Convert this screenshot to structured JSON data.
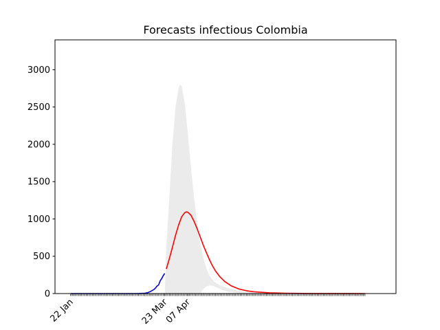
{
  "chart_data": {
    "type": "line",
    "title": "Forecasts infectious Colombia",
    "xlabel": "",
    "ylabel": "",
    "x_axis": {
      "unit": "days",
      "start_date": "2020-01-22",
      "end_date": "2020-07-31",
      "tick_labels": [
        {
          "date": "2020-01-22",
          "label": "22 Jan"
        },
        {
          "date": "2020-03-23",
          "label": "23 Mar"
        },
        {
          "date": "2020-04-07",
          "label": "07 Apr"
        }
      ]
    },
    "ylim": [
      0,
      3400
    ],
    "y_ticks": [
      0,
      500,
      1000,
      1500,
      2000,
      2500,
      3000
    ],
    "grid": false,
    "series": [
      {
        "color": "#0000cc",
        "points": [
          [
            "2020-01-22",
            0
          ],
          [
            "2020-02-15",
            0
          ],
          [
            "2020-03-01",
            0
          ],
          [
            "2020-03-06",
            1
          ],
          [
            "2020-03-10",
            5
          ],
          [
            "2020-03-12",
            12
          ],
          [
            "2020-03-14",
            30
          ],
          [
            "2020-03-16",
            55
          ],
          [
            "2020-03-17",
            75
          ],
          [
            "2020-03-18",
            100
          ],
          [
            "2020-03-19",
            115
          ],
          [
            "2020-03-20",
            170
          ],
          [
            "2020-03-21",
            200
          ],
          [
            "2020-03-22",
            240
          ],
          [
            "2020-03-23",
            270
          ]
        ]
      },
      {
        "color": "#ff0000",
        "points": [
          [
            "2020-03-24",
            330
          ],
          [
            "2020-03-26",
            470
          ],
          [
            "2020-03-28",
            620
          ],
          [
            "2020-03-30",
            780
          ],
          [
            "2020-04-01",
            920
          ],
          [
            "2020-04-03",
            1030
          ],
          [
            "2020-04-05",
            1085
          ],
          [
            "2020-04-06",
            1095
          ],
          [
            "2020-04-07",
            1090
          ],
          [
            "2020-04-09",
            1050
          ],
          [
            "2020-04-11",
            970
          ],
          [
            "2020-04-13",
            870
          ],
          [
            "2020-04-15",
            760
          ],
          [
            "2020-04-17",
            650
          ],
          [
            "2020-04-19",
            550
          ],
          [
            "2020-04-21",
            455
          ],
          [
            "2020-04-23",
            370
          ],
          [
            "2020-04-25",
            300
          ],
          [
            "2020-04-28",
            220
          ],
          [
            "2020-05-01",
            160
          ],
          [
            "2020-05-05",
            105
          ],
          [
            "2020-05-10",
            62
          ],
          [
            "2020-05-15",
            38
          ],
          [
            "2020-05-20",
            24
          ],
          [
            "2020-05-30",
            10
          ],
          [
            "2020-06-10",
            4
          ],
          [
            "2020-06-25",
            1
          ],
          [
            "2020-07-31",
            0
          ]
        ]
      }
    ],
    "band": {
      "color": "#ebebeb",
      "upper": [
        [
          "2020-03-23",
          0
        ],
        [
          "2020-03-24",
          600
        ],
        [
          "2020-03-26",
          1300
        ],
        [
          "2020-03-28",
          2000
        ],
        [
          "2020-03-30",
          2500
        ],
        [
          "2020-04-01",
          2760
        ],
        [
          "2020-04-02",
          2800
        ],
        [
          "2020-04-03",
          2780
        ],
        [
          "2020-04-05",
          2550
        ],
        [
          "2020-04-07",
          2150
        ],
        [
          "2020-04-09",
          1700
        ],
        [
          "2020-04-11",
          1290
        ],
        [
          "2020-04-13",
          950
        ],
        [
          "2020-04-15",
          680
        ],
        [
          "2020-04-17",
          480
        ],
        [
          "2020-04-19",
          340
        ],
        [
          "2020-04-21",
          240
        ],
        [
          "2020-04-24",
          160
        ],
        [
          "2020-04-28",
          110
        ],
        [
          "2020-05-02",
          80
        ],
        [
          "2020-05-06",
          55
        ],
        [
          "2020-05-12",
          30
        ],
        [
          "2020-05-20",
          12
        ],
        [
          "2020-06-05",
          3
        ],
        [
          "2020-07-31",
          0
        ]
      ],
      "lower": [
        [
          "2020-03-23",
          0
        ],
        [
          "2020-04-15",
          0
        ],
        [
          "2020-04-17",
          60
        ],
        [
          "2020-04-19",
          95
        ],
        [
          "2020-04-21",
          110
        ],
        [
          "2020-04-23",
          105
        ],
        [
          "2020-04-26",
          80
        ],
        [
          "2020-04-29",
          50
        ],
        [
          "2020-05-03",
          25
        ],
        [
          "2020-05-10",
          8
        ],
        [
          "2020-07-31",
          0
        ]
      ]
    }
  }
}
